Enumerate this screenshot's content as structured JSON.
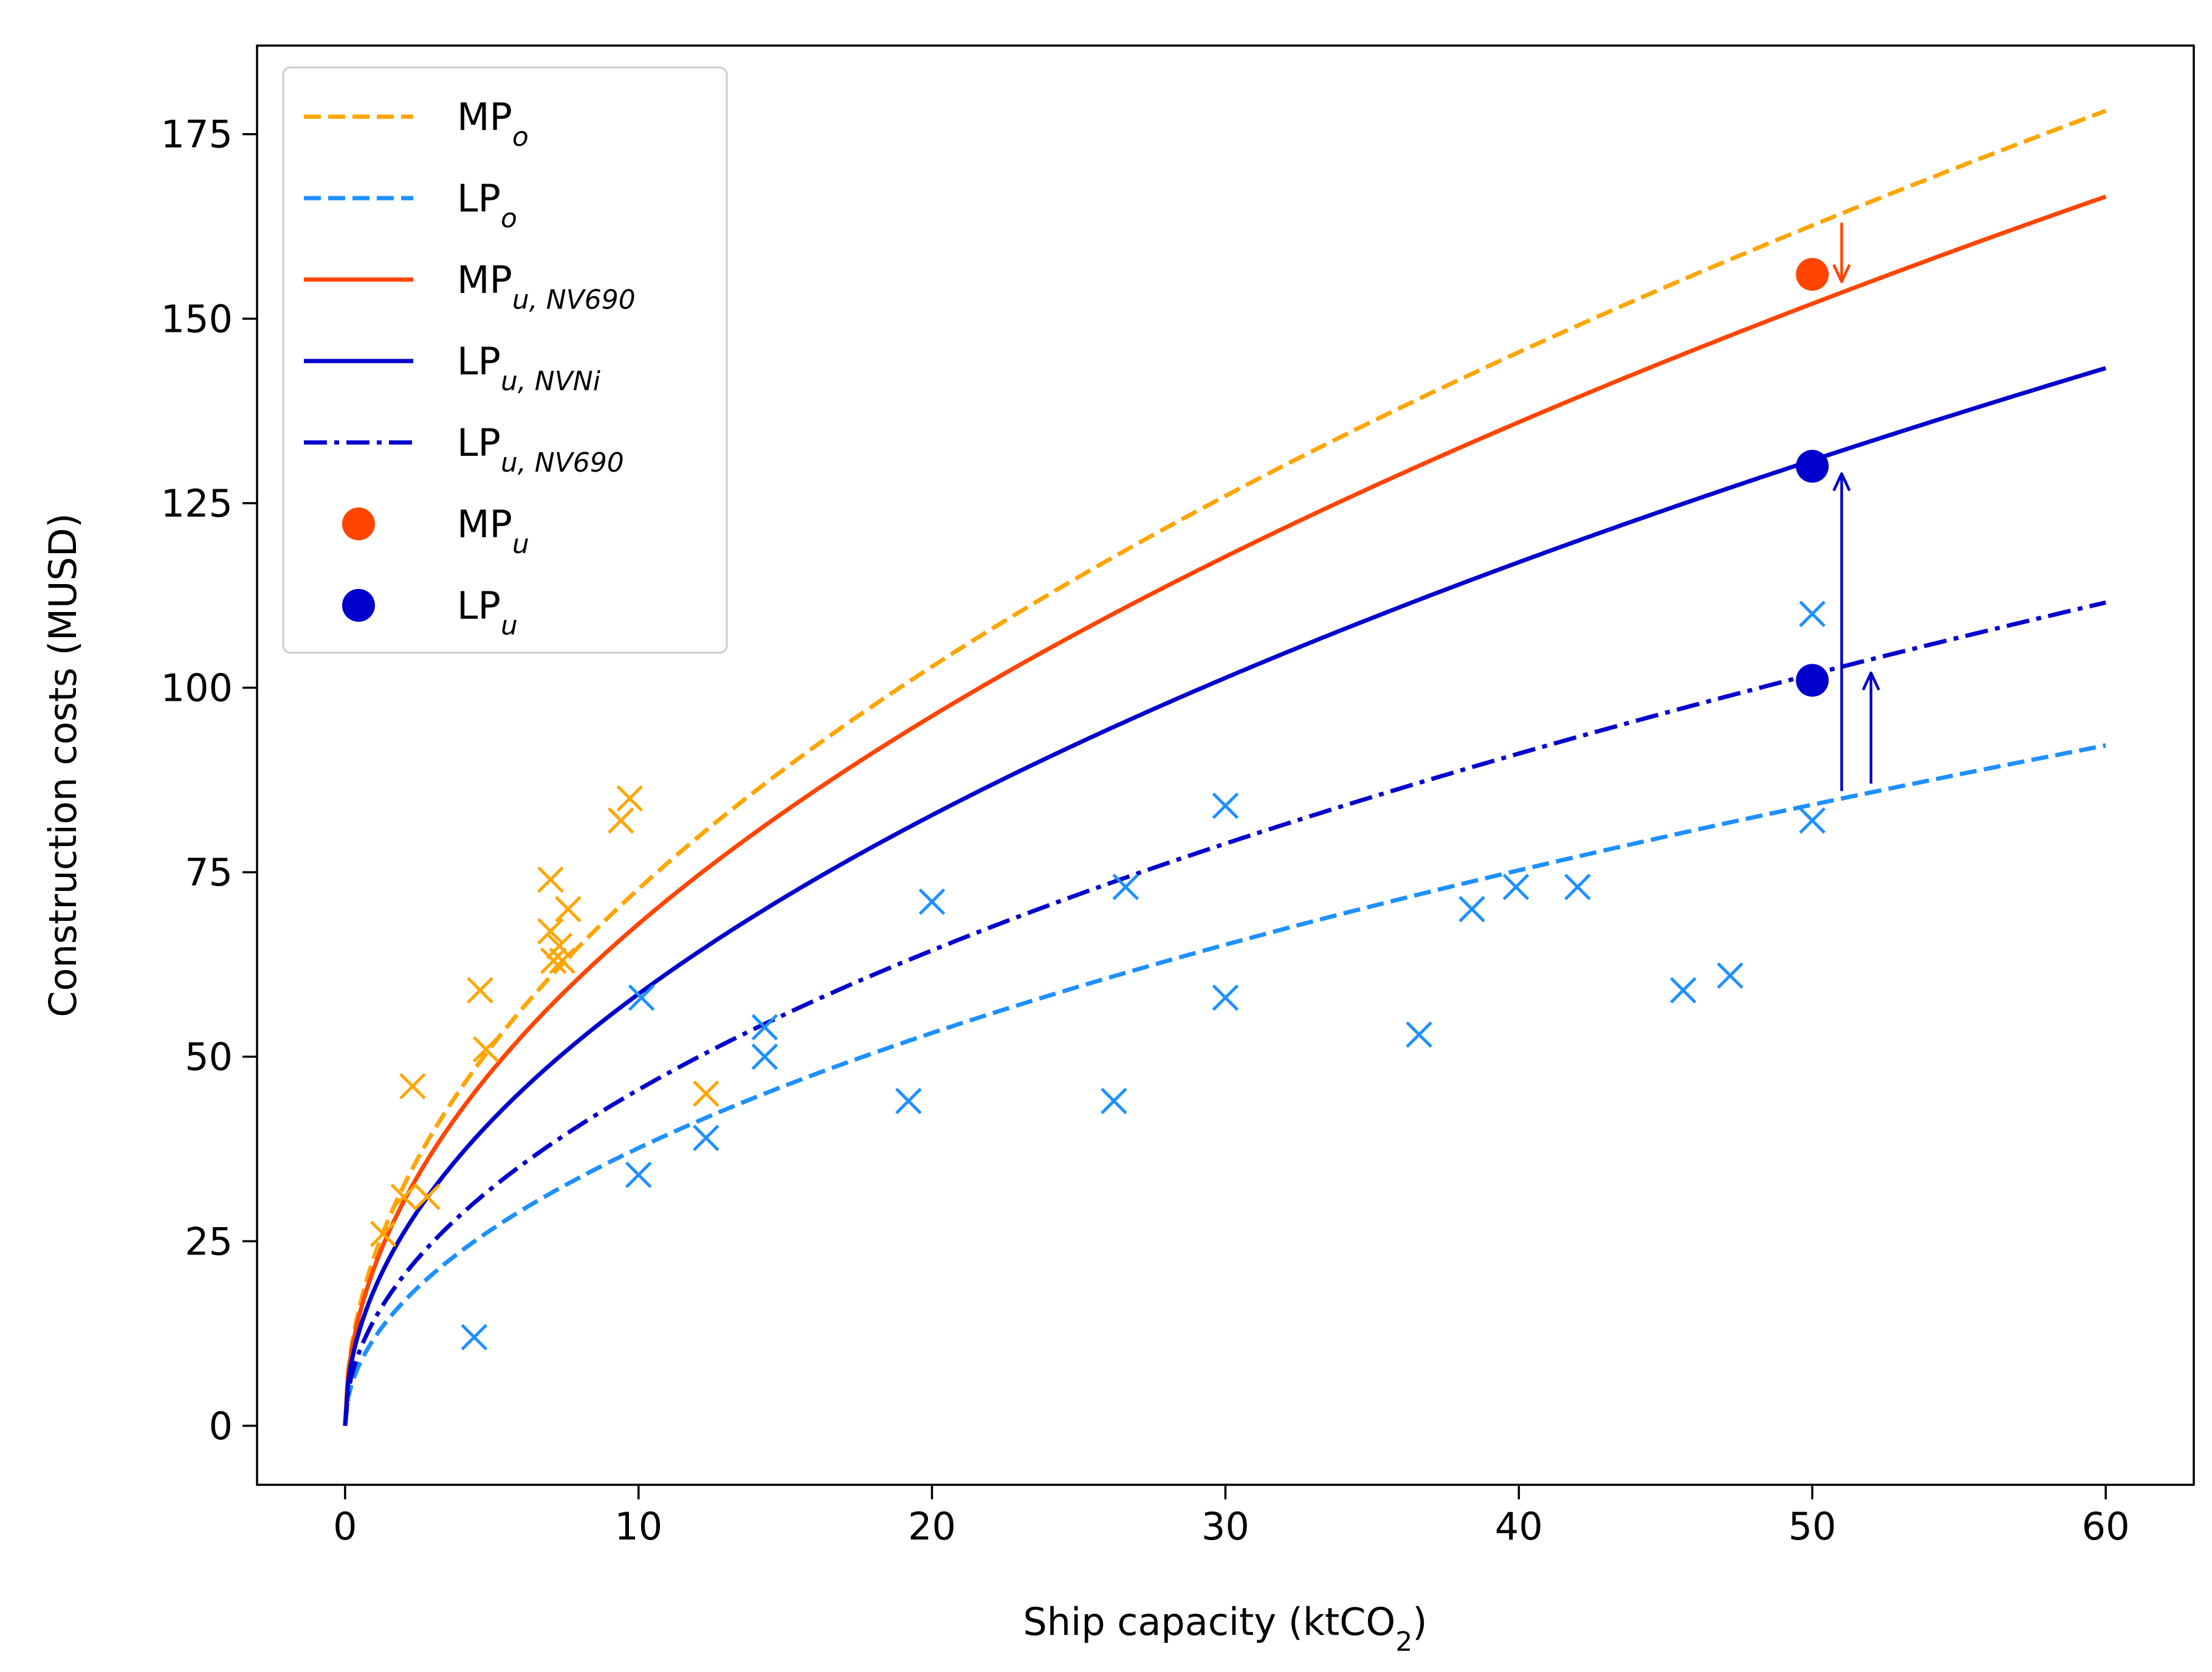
{
  "chart_data": {
    "type": "scatter",
    "xlabel": "Ship capacity (ktCO",
    "xlabel_sub": "2",
    "xlabel_end": ")",
    "ylabel": "Construction costs (MUSD)",
    "xlim": [
      -3,
      63
    ],
    "ylim": [
      -8,
      187
    ],
    "xticks": [
      0,
      10,
      20,
      30,
      40,
      50,
      60
    ],
    "yticks": [
      0,
      25,
      50,
      75,
      100,
      125,
      150,
      175
    ],
    "grid": false,
    "legend_position": "top-left",
    "colors": {
      "orange": "#ffa500",
      "lightblue": "#1e90ff",
      "red": "#ff4500",
      "blue": "#0000cd"
    },
    "curves": [
      {
        "name": "MP",
        "sub": "o",
        "style": "dashed",
        "color": "#ffa500",
        "coef": 23.0,
        "x_max": 60
      },
      {
        "name": "LP",
        "sub": "o",
        "style": "dashed",
        "color": "#1e90ff",
        "coef": 11.9,
        "x_max": 60
      },
      {
        "name": "MP",
        "sub": "u, NV690",
        "style": "solid",
        "color": "#ff4500",
        "coef": 21.5,
        "x_max": 60
      },
      {
        "name": "LP",
        "sub": "u, NVNi",
        "style": "solid",
        "color": "#0000cd",
        "coef": 18.5,
        "x_max": 60
      },
      {
        "name": "LP",
        "sub": "u, NV690",
        "style": "dashdot",
        "color": "#0000cd",
        "coef": 14.4,
        "x_max": 60
      }
    ],
    "points": [
      {
        "name": "MP",
        "sub": "u",
        "color": "#ff4500",
        "x": 50,
        "y": 156
      },
      {
        "name": "LP",
        "sub": "u",
        "color": "#0000cd",
        "x": 50,
        "y": 130
      },
      {
        "name": "LP",
        "sub": "u",
        "color": "#0000cd",
        "x": 50,
        "y": 101
      }
    ],
    "mp_observations": {
      "color": "#ffa500",
      "x": [
        1.3,
        2.0,
        2.3,
        2.8,
        4.6,
        4.8,
        7.0,
        7.0,
        7.1,
        7.3,
        7.4,
        7.6,
        9.4,
        9.7,
        12.3
      ],
      "y": [
        26,
        31,
        46,
        31,
        59,
        51,
        74,
        67,
        63,
        65,
        63,
        70,
        82,
        85,
        45
      ]
    },
    "lp_observations": {
      "color": "#1e90ff",
      "x": [
        4.4,
        10.0,
        10.1,
        12.3,
        14.3,
        14.3,
        19.2,
        20.0,
        26.2,
        26.6,
        30.0,
        30.0,
        36.6,
        38.4,
        39.9,
        42.0,
        45.6,
        47.2,
        50.0,
        50.0
      ],
      "y": [
        12,
        34,
        58,
        39,
        54,
        50,
        44,
        71,
        44,
        73,
        84,
        58,
        53,
        70,
        73,
        73,
        59,
        61,
        110,
        82
      ]
    },
    "arrows": [
      {
        "color": "#ff4500",
        "x": 51,
        "y_from": 163,
        "y_to": 155
      },
      {
        "color": "#0000cd",
        "x": 51,
        "y_from": 86,
        "y_to": 129
      },
      {
        "color": "#0000cd",
        "x": 52,
        "y_from": 87,
        "y_to": 102
      }
    ]
  }
}
